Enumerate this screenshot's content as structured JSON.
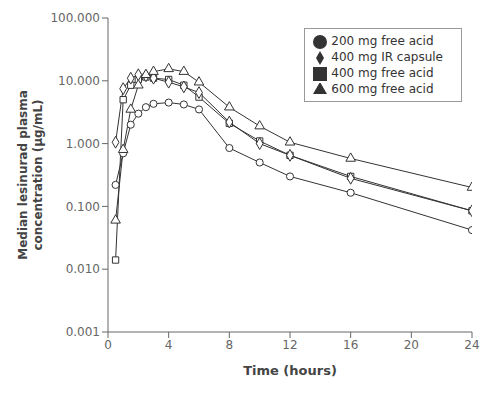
{
  "chart_data": {
    "type": "line",
    "xlabel": "Time (hours)",
    "ylabel": "Median lesinurad plasma\nconcentration (μg/mL)",
    "x": [
      0.5,
      1,
      1.5,
      2,
      2.5,
      3,
      4,
      5,
      6,
      8,
      10,
      12,
      16,
      24
    ],
    "series": [
      {
        "name": "200 mg free acid",
        "color": "#333333",
        "marker": "circle",
        "values": [
          0.22,
          0.7,
          2.0,
          3.0,
          3.8,
          4.3,
          4.5,
          4.2,
          3.5,
          0.85,
          0.5,
          0.3,
          0.165,
          0.042
        ]
      },
      {
        "name": "400 mg free acid",
        "color": "#333333",
        "marker": "square",
        "values": [
          0.014,
          5.0,
          8.5,
          10.5,
          11.5,
          11.0,
          10.5,
          8.5,
          5.5,
          2.1,
          1.1,
          0.65,
          0.3,
          0.085
        ]
      },
      {
        "name": "400 mg IR capsule",
        "color": "#333333",
        "marker": "diamond",
        "values": [
          1.05,
          7.5,
          11.0,
          12.5,
          12.0,
          11.0,
          9.5,
          8.0,
          6.5,
          2.2,
          1.0,
          0.65,
          0.28,
          0.085
        ]
      },
      {
        "name": "600 mg free acid",
        "color": "#333333",
        "marker": "triangle",
        "values": [
          0.06,
          0.8,
          3.5,
          8.5,
          12.5,
          14.0,
          15.5,
          14.0,
          9.5,
          3.8,
          1.9,
          1.05,
          0.58,
          0.2
        ]
      }
    ],
    "xlim": [
      0,
      24
    ],
    "xticks": [
      0,
      4,
      8,
      12,
      16,
      20,
      24
    ],
    "log": "y",
    "ylim": [
      0.001,
      100.0
    ],
    "yticks": [
      0.001,
      {
        "value": 0.01,
        "label": "0.010"
      },
      {
        "value": 0.1,
        "label": "0.100"
      },
      {
        "value": 1.0,
        "label": "1.000"
      },
      {
        "value": 10.0,
        "label": "10.000"
      },
      {
        "value": 100.0,
        "label": "100.000"
      }
    ],
    "legend": "upper right",
    "grid": false
  }
}
